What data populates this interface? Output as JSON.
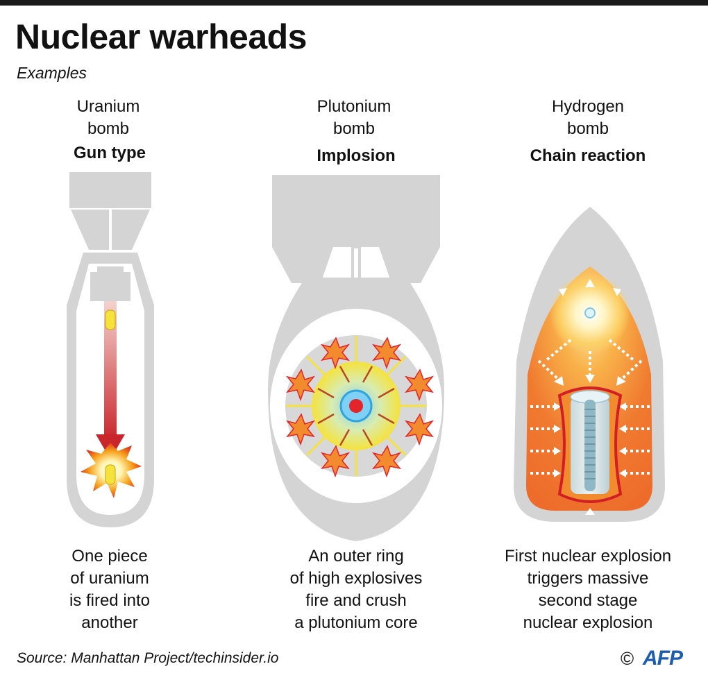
{
  "title": "Nuclear warheads",
  "subtitle": "Examples",
  "columns": [
    {
      "name_lines": [
        "Uranium",
        "bomb"
      ],
      "type": "Gun type",
      "description_lines": [
        "One piece",
        "of uranium",
        "is fired into",
        "another"
      ]
    },
    {
      "name_lines": [
        "Plutonium",
        "bomb"
      ],
      "type": "Implosion",
      "description_lines": [
        "An outer ring",
        "of high explosives",
        "fire and crush",
        "a plutonium core"
      ]
    },
    {
      "name_lines": [
        "Hydrogen",
        "bomb"
      ],
      "type": "Chain reaction",
      "description_lines": [
        "First nuclear explosion",
        "triggers massive",
        "second stage",
        "nuclear explosion"
      ]
    }
  ],
  "source": "Source: Manhattan Project/techinsider.io",
  "credit": "©",
  "logo": "AFP",
  "colors": {
    "casing": "#d4d4d4",
    "explosion_orange": "#f28a2e",
    "core_red": "#e3242b",
    "arrow_red": "#c9262c",
    "ring_yellow": "#f5e23c",
    "core_blue": "#4fb3e8",
    "logo_blue": "#1d5db0"
  }
}
